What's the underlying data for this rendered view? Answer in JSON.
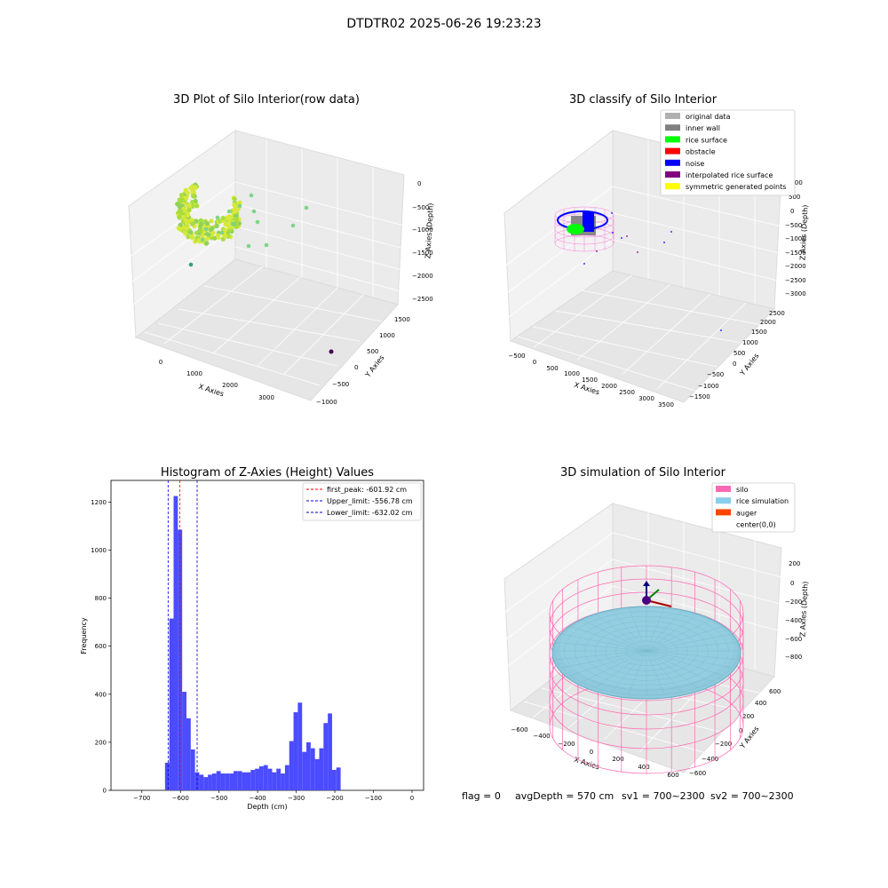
{
  "figure_title": "DTDTR02 2025-06-26 19:23:23",
  "status_line": {
    "flag": "flag = 0",
    "avg_depth": "avgDepth = 570 cm",
    "sv1": "sv1 = 700~2300",
    "sv2": "sv2 = 700~2300"
  },
  "colors": {
    "hist_bar": "#4b4bff",
    "first_peak": "#ff0000",
    "limits": "#0000cc",
    "original_data": "#b0b0b0",
    "inner_wall": "#808080",
    "rice_surface": "#00ff00",
    "obstacle": "#ff0000",
    "noise": "#0000ff",
    "interpolated_rice_surface": "#800080",
    "symmetric_generated_points": "#ffff00",
    "silo": "#ff69b4",
    "rice_simulation": "#87ceeb",
    "auger": "#ff4500"
  },
  "chart_data": [
    {
      "type": "scatter",
      "title": "3D Plot of Silo Interior(row data)",
      "xlabel": "X Axies",
      "ylabel": "Y Axies",
      "zlabel": "Z Axies (Depth)",
      "x_ticks": [
        "0",
        "1000",
        "2000",
        "3000"
      ],
      "y_ticks": [
        "−1000",
        "−500",
        "0",
        "500",
        "1000",
        "1500"
      ],
      "z_ticks": [
        "0",
        "−500",
        "−1000",
        "−1500",
        "−2000",
        "−2500"
      ],
      "series": [
        {
          "values": [
            {
              "x": 400,
              "y": 100,
              "z": -600
            },
            {
              "x": 600,
              "y": 200,
              "z": -800
            },
            {
              "x": 900,
              "y": 300,
              "z": -700
            },
            {
              "x": 1200,
              "y": 500,
              "z": -900
            },
            {
              "x": 1600,
              "y": 700,
              "z": -600
            },
            {
              "x": 3200,
              "y": -300,
              "z": -2400
            }
          ]
        }
      ]
    },
    {
      "type": "scatter",
      "title": "3D classify of Silo Interior",
      "xlabel": "X Axies",
      "ylabel": "Y Axies",
      "zlabel": "Z Axies (Depth)",
      "x_ticks": [
        "−500",
        "0",
        "500",
        "1000",
        "1500",
        "2000",
        "2500",
        "3000",
        "3500"
      ],
      "y_ticks": [
        "−1500",
        "−1000",
        "−500",
        "0",
        "500",
        "1000",
        "1500",
        "2000",
        "2500"
      ],
      "z_ticks": [
        "1000",
        "500",
        "0",
        "−500",
        "−1000",
        "−1500",
        "−2000",
        "−2500",
        "−3000"
      ],
      "legend": [
        "original data",
        "inner wall",
        "rice surface",
        "obstacle",
        "noise",
        "interpolated rice surface",
        "symmetric generated points"
      ],
      "legend_position": "top-right"
    },
    {
      "type": "bar",
      "title": "Histogram of Z-Axies (Height) Values",
      "xlabel": "Depth (cm)",
      "ylabel": "Frequency",
      "xlim": [
        -780,
        30
      ],
      "ylim": [
        0,
        1290
      ],
      "x_ticks": [
        -700,
        -600,
        -500,
        -400,
        -300,
        -200,
        -100,
        0
      ],
      "y_ticks": [
        0,
        200,
        400,
        600,
        800,
        1000,
        1200
      ],
      "bin_start": -640,
      "bin_width": 11.1,
      "values": [
        115,
        715,
        1225,
        1085,
        410,
        300,
        170,
        75,
        65,
        55,
        65,
        70,
        80,
        70,
        70,
        70,
        80,
        80,
        75,
        75,
        85,
        90,
        100,
        105,
        90,
        75,
        90,
        70,
        105,
        205,
        325,
        365,
        160,
        200,
        175,
        130,
        175,
        280,
        320,
        85,
        95
      ],
      "lines": [
        {
          "label": "first_peak: -601.92 cm",
          "x": -601.92,
          "style": "red-dashed"
        },
        {
          "label": "Upper_limit: -556.78 cm",
          "x": -556.78,
          "style": "blue-dashed"
        },
        {
          "label": "Lower_limit: -632.02 cm",
          "x": -632.02,
          "style": "blue-dashed"
        }
      ],
      "legend_position": "top-right"
    },
    {
      "type": "3d-surface",
      "title": "3D simulation of Silo Interior",
      "xlabel": "X Axies",
      "ylabel": "Y Axies",
      "zlabel": "Z Axies (Depth)",
      "x_ticks": [
        "−600",
        "−400",
        "−200",
        "0",
        "200",
        "400",
        "600"
      ],
      "y_ticks": [
        "−600",
        "−400",
        "−200",
        "0",
        "200",
        "400",
        "600"
      ],
      "z_ticks": [
        "200",
        "0",
        "−200",
        "−400",
        "−600",
        "−800"
      ],
      "legend": [
        "silo",
        "rice simulation",
        "auger",
        "center(0,0)"
      ],
      "legend_position": "top-right"
    }
  ]
}
